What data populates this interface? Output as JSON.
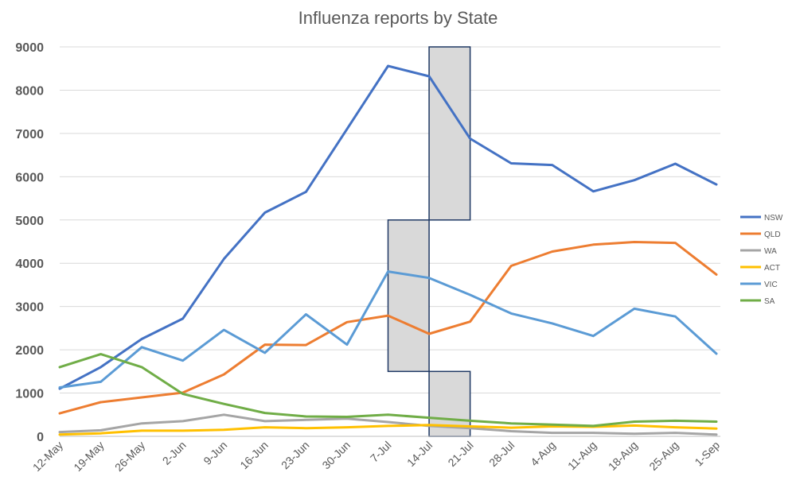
{
  "chart_data": {
    "type": "line",
    "title": "Influenza reports by State",
    "xlabel": "",
    "ylabel": "",
    "ylim": [
      0,
      9000
    ],
    "yticks": [
      0,
      1000,
      2000,
      3000,
      4000,
      5000,
      6000,
      7000,
      8000,
      9000
    ],
    "categories": [
      "12-May",
      "19-May",
      "26-May",
      "2-Jun",
      "9-Jun",
      "16-Jun",
      "23-Jun",
      "30-Jun",
      "7-Jul",
      "14-Jul",
      "21-Jul",
      "28-Jul",
      "4-Aug",
      "11-Aug",
      "18-Aug",
      "25-Aug",
      "1-Sep"
    ],
    "grid": true,
    "legend_position": "right",
    "series": [
      {
        "name": "NSW",
        "color": "#4472C4",
        "values": [
          1100,
          1600,
          2250,
          2720,
          4100,
          5170,
          5650,
          7100,
          8560,
          8320,
          6880,
          6310,
          6270,
          5660,
          5920,
          6300,
          5820
        ]
      },
      {
        "name": "QLD",
        "color": "#ED7D31",
        "values": [
          530,
          790,
          900,
          1010,
          1430,
          2120,
          2110,
          2640,
          2790,
          2370,
          2650,
          3940,
          4270,
          4430,
          4490,
          4470,
          3740
        ]
      },
      {
        "name": "WA",
        "color": "#A5A5A5",
        "values": [
          100,
          140,
          300,
          350,
          500,
          350,
          380,
          410,
          330,
          240,
          190,
          120,
          80,
          80,
          60,
          80,
          40
        ]
      },
      {
        "name": "ACT",
        "color": "#FFC000",
        "values": [
          40,
          70,
          130,
          130,
          150,
          210,
          190,
          210,
          240,
          260,
          230,
          200,
          230,
          220,
          250,
          210,
          180
        ]
      },
      {
        "name": "VIC",
        "color": "#5B9BD5",
        "values": [
          1130,
          1260,
          2060,
          1750,
          2460,
          1930,
          2820,
          2120,
          3810,
          3660,
          3270,
          2840,
          2610,
          2320,
          2950,
          2770,
          1910
        ]
      },
      {
        "name": "SA",
        "color": "#70AD47",
        "values": [
          1600,
          1900,
          1600,
          980,
          750,
          540,
          460,
          450,
          500,
          430,
          360,
          300,
          270,
          240,
          340,
          360,
          340
        ]
      }
    ],
    "highlight_boxes": [
      {
        "x_from": "14-Jul",
        "x_to": "21-Jul",
        "y_from": 5000,
        "y_to": 9000
      },
      {
        "x_from": "7-Jul",
        "x_to": "14-Jul",
        "y_from": 1500,
        "y_to": 5000
      },
      {
        "x_from": "14-Jul",
        "x_to": "21-Jul",
        "y_from": 0,
        "y_to": 1500
      }
    ]
  }
}
